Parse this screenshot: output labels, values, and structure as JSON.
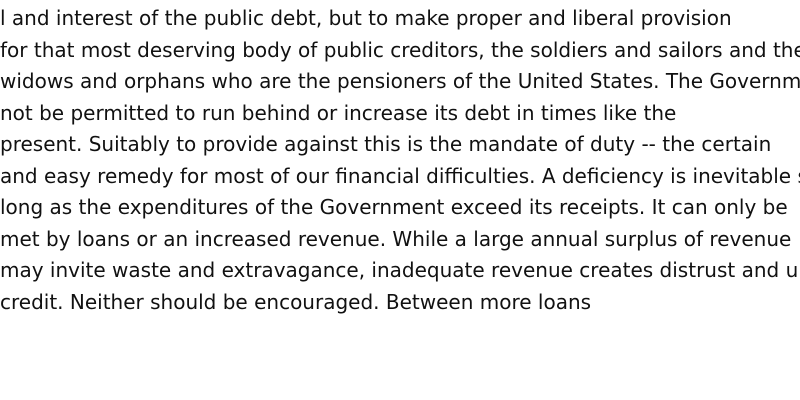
{
  "document": {
    "lines": [
      "l and interest of the public debt, but to make proper and liberal provision",
      "for that most deserving body of public creditors, the soldiers and sailors and the",
      "widows and orphans who are the pensioners of the United States. The Government",
      "not be permitted to run behind or increase its debt in times like the",
      "present. Suitably to provide against this is the mandate of duty -- the certain",
      "and easy remedy for most of our financial difficulties. A deficiency is inevitable s",
      "long as the expenditures of the Government exceed its receipts. It can only be",
      "met by loans or an increased revenue. While a large annual surplus of revenue",
      "may invite waste and extravagance, inadequate revenue creates distrust and und",
      "credit. Neither should be encouraged. Between more loans"
    ]
  }
}
